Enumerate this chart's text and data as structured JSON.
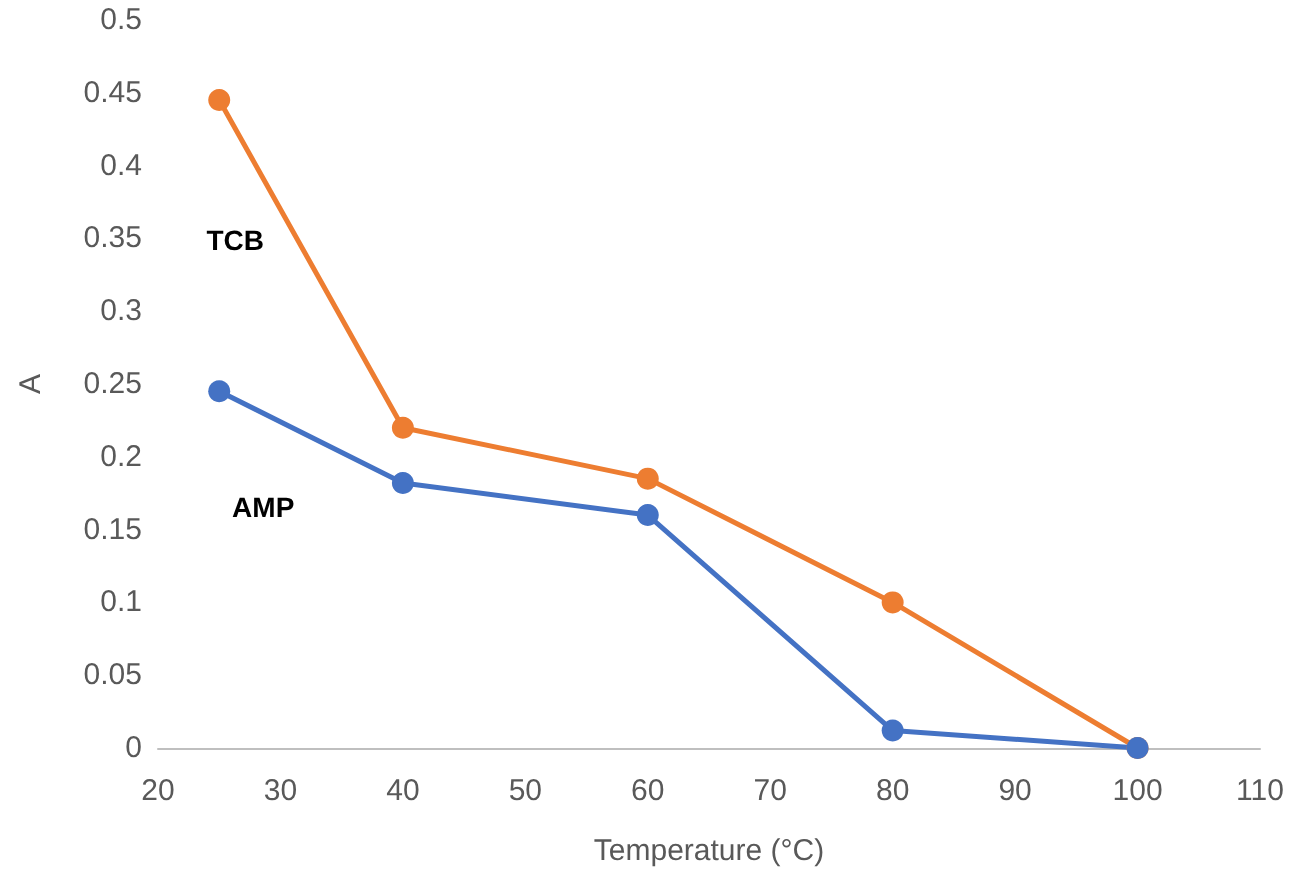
{
  "chart_data": {
    "type": "line",
    "xlabel": "Temperature (°C)",
    "ylabel": "A",
    "x": [
      25,
      40,
      60,
      80,
      100
    ],
    "series": [
      {
        "name": "TCB",
        "color": "#ed7d31",
        "values": [
          0.445,
          0.22,
          0.185,
          0.1,
          0
        ]
      },
      {
        "name": "AMP",
        "color": "#4472c4",
        "values": [
          0.245,
          0.182,
          0.16,
          0.012,
          0
        ]
      }
    ],
    "xlim": [
      20,
      110
    ],
    "xticks": [
      20,
      30,
      40,
      50,
      60,
      70,
      80,
      90,
      100,
      110
    ],
    "ylim": [
      0,
      0.5
    ],
    "yticks": [
      0,
      0.05,
      0.1,
      0.15,
      0.2,
      0.25,
      0.3,
      0.35,
      0.4,
      0.45,
      0.5
    ],
    "grid": false,
    "legend": false,
    "marker": "circle",
    "line_style": "solid"
  }
}
